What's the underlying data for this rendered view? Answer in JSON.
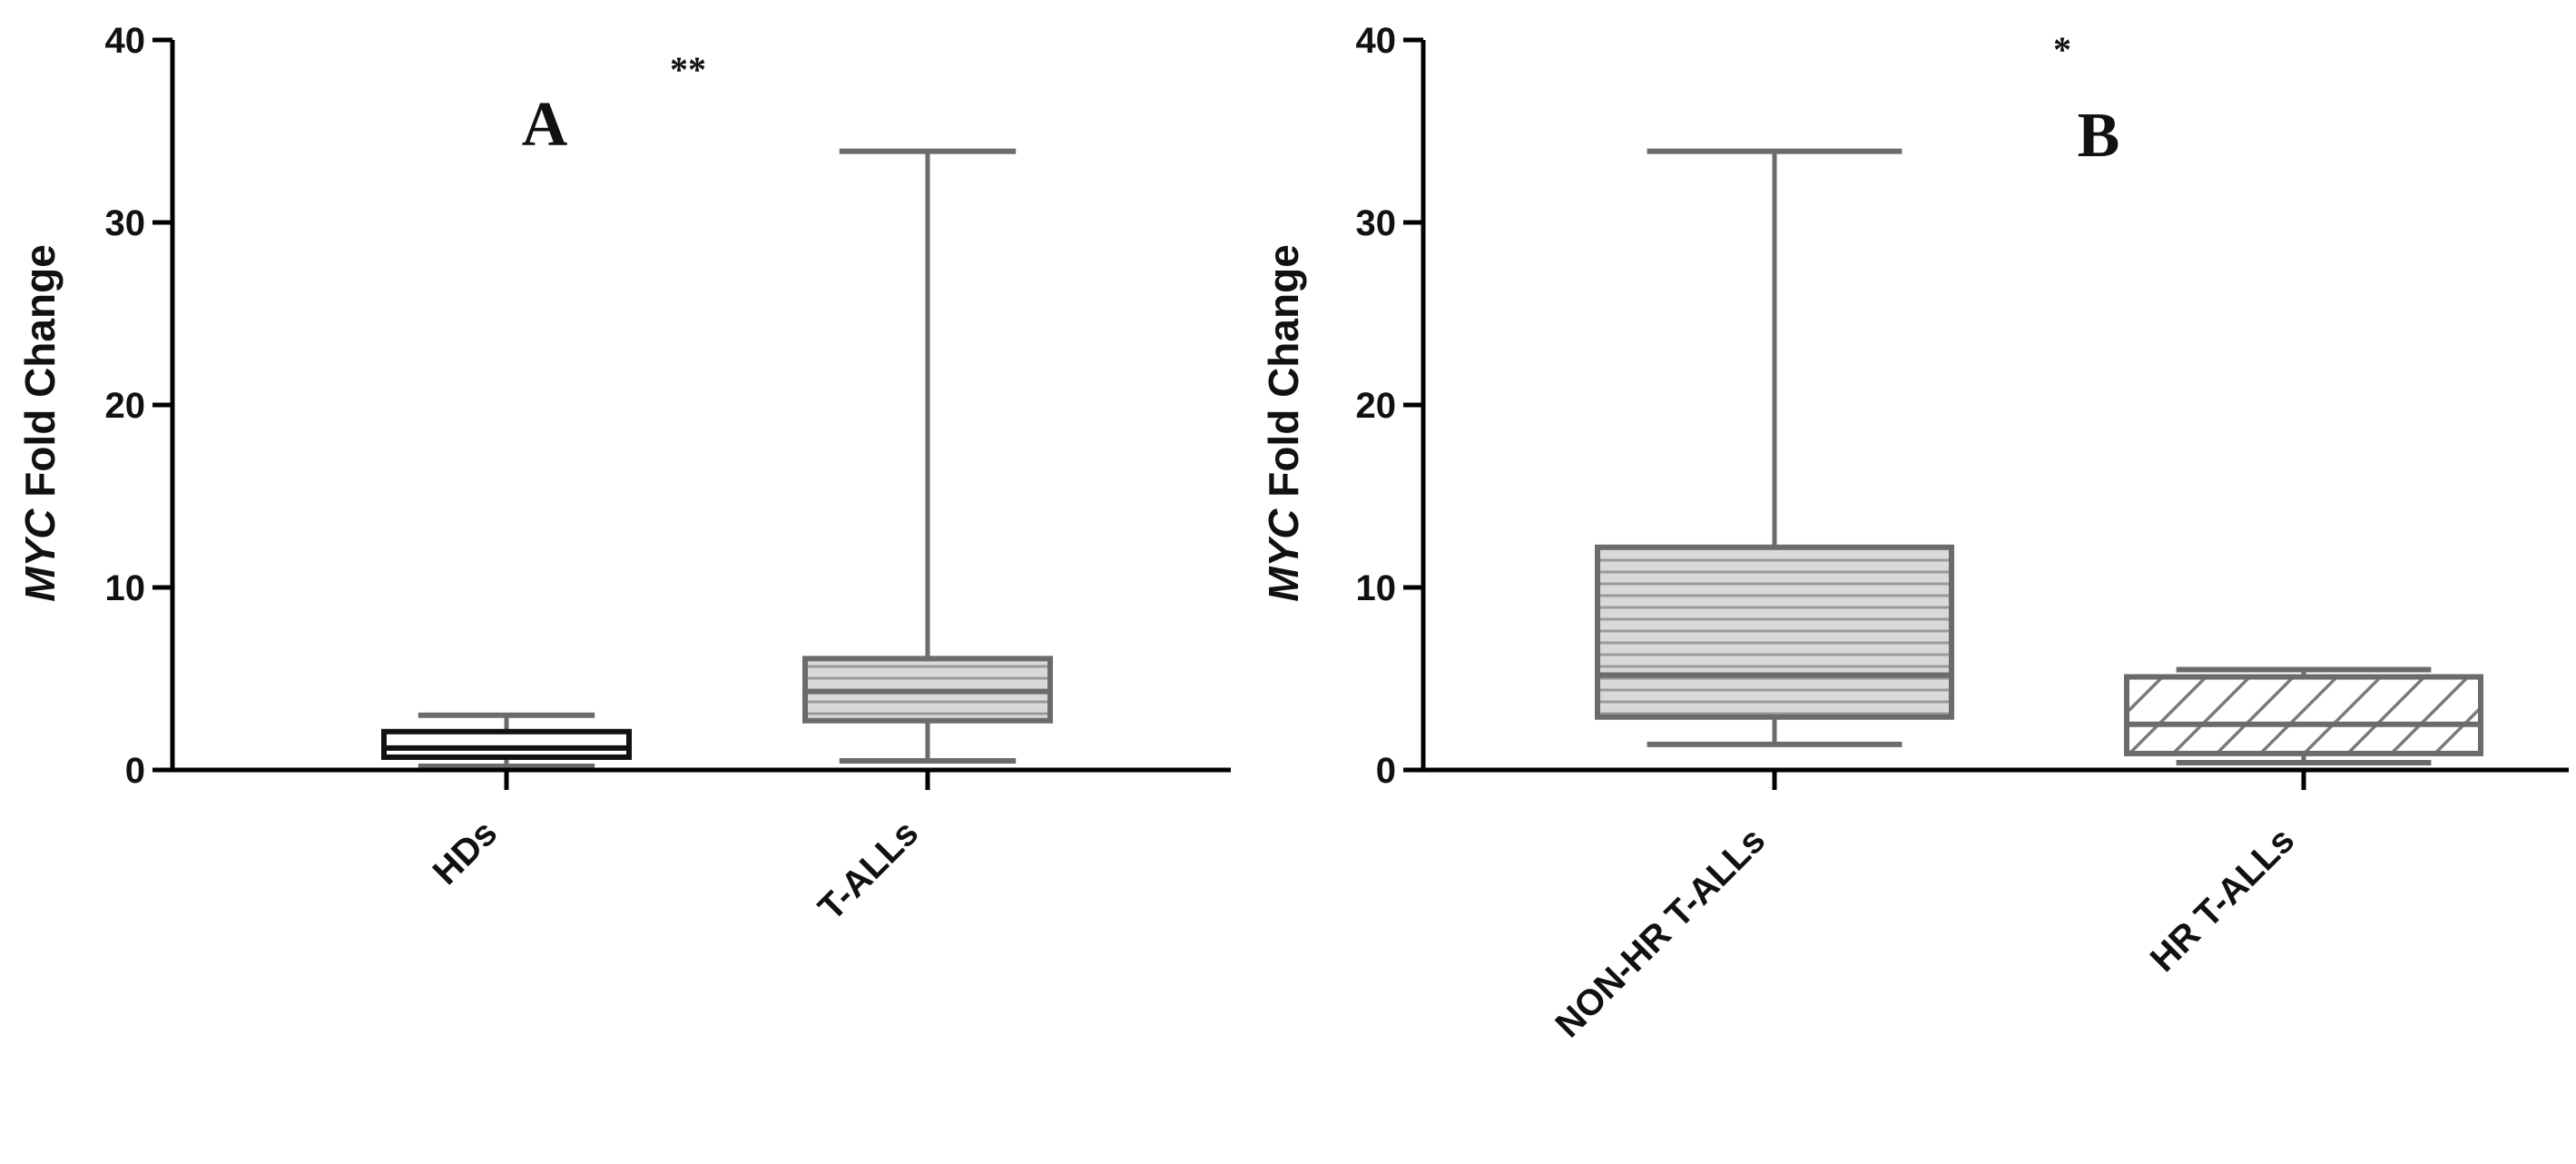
{
  "chart_data": [
    {
      "type": "box",
      "panel": "A",
      "significance": "**",
      "ylabel_italic": "MYC",
      "ylabel_rest": " Fold Change",
      "ylim": [
        0,
        40
      ],
      "yticks": [
        0,
        10,
        20,
        30,
        40
      ],
      "categories": [
        "HDs",
        "T-ALLs"
      ],
      "boxes": [
        {
          "category": "HDs",
          "min": 0.2,
          "q1": 0.7,
          "median": 1.2,
          "q3": 2.1,
          "max": 3.0,
          "fill": "none"
        },
        {
          "category": "T-ALLs",
          "min": 0.5,
          "q1": 2.7,
          "median": 4.3,
          "q3": 6.1,
          "max": 33.9,
          "fill": "horizontal-lines"
        }
      ]
    },
    {
      "type": "box",
      "panel": "B",
      "significance": "*",
      "ylabel_italic": "MYC",
      "ylabel_rest": " Fold Change",
      "ylim": [
        0,
        40
      ],
      "yticks": [
        0,
        10,
        20,
        30,
        40
      ],
      "categories": [
        "NON-HR T-ALLs",
        "HR T-ALLs"
      ],
      "boxes": [
        {
          "category": "NON-HR T-ALLs",
          "min": 1.4,
          "q1": 2.9,
          "median": 5.2,
          "q3": 12.2,
          "max": 33.9,
          "fill": "horizontal-lines"
        },
        {
          "category": "HR T-ALLs",
          "min": 0.4,
          "q1": 0.9,
          "median": 2.5,
          "q3": 5.1,
          "max": 5.5,
          "fill": "diagonal-hatch"
        }
      ]
    }
  ],
  "colors": {
    "box_stroke": "#6b6b6b",
    "axis": "#000000",
    "hatch_fill": "#d9d9d9",
    "hatch_line": "#9a9a9a"
  }
}
